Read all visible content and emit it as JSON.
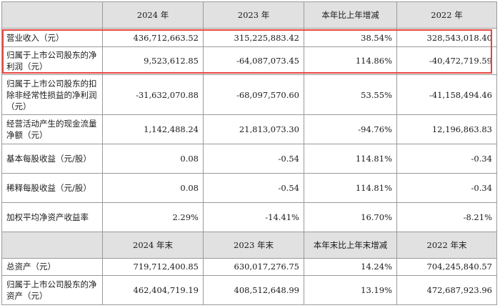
{
  "header": [
    "",
    "2024 年",
    "2023 年",
    "本年比上年增减",
    "2022 年"
  ],
  "rows": [
    {
      "label": "营业收入（元）",
      "c1": "436,712,663.52",
      "c2": "315,225,883.42",
      "c3": "38.54%",
      "c4": "328,543,018.40"
    },
    {
      "label": "归属于上市公司股东的净利润（元）",
      "c1": "9,523,612.85",
      "c2": "-64,087,073.45",
      "c3": "114.86%",
      "c4": "-40,472,719.59"
    },
    {
      "label": "归属于上市公司股东的扣除非经常性损益的净利润（元）",
      "c1": "-31,632,070.88",
      "c2": "-68,097,570.60",
      "c3": "53.55%",
      "c4": "-41,158,494.46"
    },
    {
      "label": "经营活动产生的现金流量净额（元）",
      "c1": "1,142,488.24",
      "c2": "21,813,073.30",
      "c3": "-94.76%",
      "c4": "12,196,863.83"
    },
    {
      "label": "基本每股收益（元/股）",
      "c1": "0.08",
      "c2": "-0.54",
      "c3": "114.81%",
      "c4": "-0.34"
    },
    {
      "label": "稀释每股收益（元/股）",
      "c1": "0.08",
      "c2": "-0.54",
      "c3": "114.81%",
      "c4": "-0.34"
    },
    {
      "label": "加权平均净资产收益率",
      "c1": "2.29%",
      "c2": "-14.41%",
      "c3": "16.70%",
      "c4": "-8.21%"
    }
  ],
  "header2": [
    "",
    "2024 年末",
    "2023 年末",
    "本年末比上年末增减",
    "2022 年末"
  ],
  "rows2": [
    {
      "label": "总资产（元）",
      "c1": "719,712,400.85",
      "c2": "630,017,276.75",
      "c3": "14.24%",
      "c4": "704,245,840.57"
    },
    {
      "label": "归属于上市公司股东的净资产（元）",
      "c1": "462,404,719.19",
      "c2": "408,512,648.99",
      "c3": "13.19%",
      "c4": "472,687,923.96"
    }
  ],
  "highlight_color": "#e5463d"
}
